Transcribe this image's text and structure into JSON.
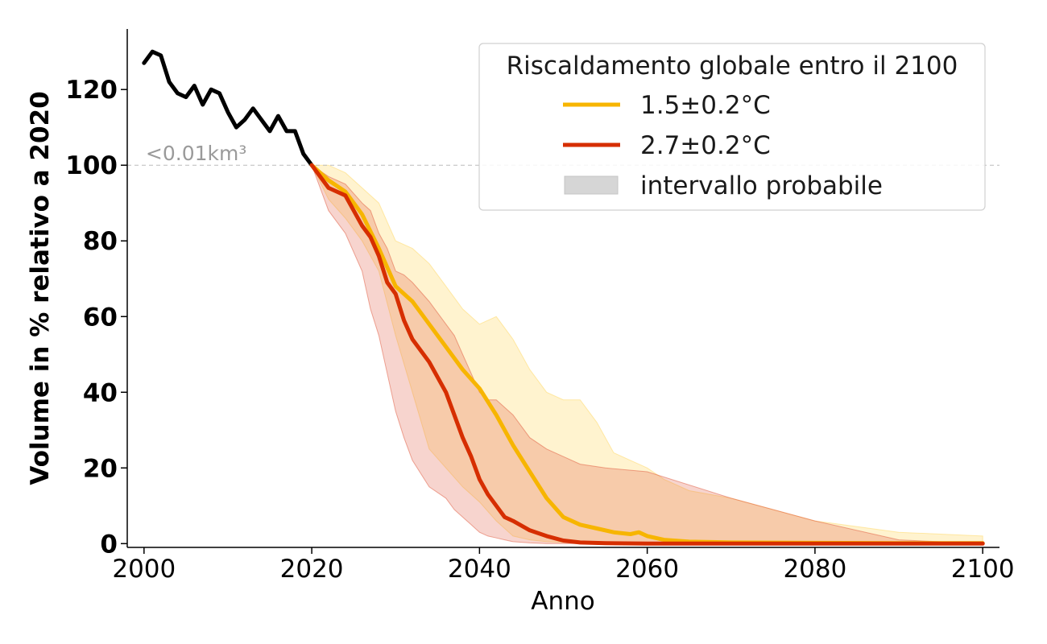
{
  "chart_data": {
    "type": "line",
    "xlabel": "Anno",
    "ylabel": "Volume in % relativo a 2020",
    "xlim": [
      1998,
      2102
    ],
    "ylim": [
      -1,
      136
    ],
    "xticks": [
      2000,
      2020,
      2040,
      2060,
      2080,
      2100
    ],
    "xtick_labels": [
      "2000",
      "2020",
      "2040",
      "2060",
      "2080",
      "2100"
    ],
    "yticks": [
      0,
      20,
      40,
      60,
      80,
      100,
      120
    ],
    "ytick_labels": [
      "0",
      "20",
      "40",
      "60",
      "80",
      "100",
      "120"
    ],
    "reference_line": {
      "y": 100,
      "style": "dashed",
      "color": "#bbbbbb"
    },
    "annotation": {
      "text": "<0.01km³",
      "x": 2000.2,
      "y": 100
    },
    "legend": {
      "title": "Riscaldamento globale entro il 2100",
      "position": "top-right",
      "entries": [
        "1.5±0.2°C",
        "2.7±0.2°C",
        "intervallo probabile"
      ]
    },
    "series": [
      {
        "key": "observed",
        "color": "#000000",
        "x": [
          2000,
          2001,
          2002,
          2003,
          2004,
          2005,
          2006,
          2007,
          2008,
          2009,
          2010,
          2011,
          2012,
          2013,
          2014,
          2015,
          2016,
          2017,
          2018,
          2019,
          2020
        ],
        "values": [
          127,
          130,
          129,
          122,
          119,
          118,
          121,
          116,
          120,
          119,
          114,
          110,
          112,
          115,
          112,
          109,
          113,
          109,
          109,
          103,
          100
        ]
      },
      {
        "key": "scenario_low",
        "name": "1.5±0.2°C",
        "color": "#f7b500",
        "x": [
          2020,
          2022,
          2024,
          2026,
          2028,
          2030,
          2032,
          2034,
          2036,
          2038,
          2040,
          2042,
          2044,
          2046,
          2048,
          2050,
          2052,
          2054,
          2056,
          2058,
          2059,
          2060,
          2062,
          2065,
          2070,
          2080,
          2090,
          2100
        ],
        "values": [
          100,
          96,
          93,
          87,
          78,
          68,
          64,
          58,
          52,
          46,
          41,
          34,
          26,
          19,
          12,
          7,
          5,
          4,
          3,
          2.5,
          3,
          2,
          1,
          0.5,
          0.3,
          0.2,
          0.1,
          0.1
        ],
        "range_upper": [
          100,
          100,
          98,
          94,
          90,
          80,
          78,
          74,
          68,
          62,
          58,
          60,
          54,
          46,
          40,
          38,
          38,
          32,
          24,
          22,
          21,
          20,
          17,
          14,
          12,
          6,
          3,
          2
        ],
        "range_lower": [
          100,
          91,
          86,
          80,
          72,
          55,
          40,
          25,
          20,
          15,
          11,
          6,
          2,
          1,
          0.5,
          0.3,
          0.2,
          0.1,
          0.1,
          0.1,
          0.1,
          0,
          0,
          0,
          0,
          0,
          0,
          0
        ]
      },
      {
        "key": "scenario_high",
        "name": "2.7±0.2°C",
        "color": "#d62e00",
        "x": [
          2020,
          2022,
          2024,
          2026,
          2027,
          2028,
          2029,
          2030,
          2031,
          2032,
          2034,
          2036,
          2037,
          2038,
          2039,
          2040,
          2041,
          2042,
          2043,
          2044,
          2046,
          2048,
          2050,
          2052,
          2055,
          2060,
          2070,
          2080,
          2090,
          2100
        ],
        "values": [
          100,
          94,
          92,
          84,
          81,
          76,
          69,
          66,
          59,
          54,
          48,
          40,
          34,
          28,
          23,
          17,
          13,
          10,
          7,
          6,
          3.5,
          2,
          0.8,
          0.3,
          0.1,
          0,
          0,
          0,
          0,
          0
        ],
        "range_upper": [
          100,
          97,
          95,
          90,
          88,
          82,
          78,
          72,
          71,
          69,
          64,
          58,
          55,
          50,
          45,
          40,
          38,
          38,
          36,
          34,
          28,
          25,
          23,
          21,
          20,
          19,
          12,
          6,
          1,
          0
        ],
        "range_lower": [
          100,
          88,
          82,
          72,
          62,
          55,
          45,
          35,
          28,
          22,
          15,
          12,
          9,
          7,
          5,
          3,
          2,
          1.5,
          1,
          0.5,
          0.2,
          0,
          0,
          0,
          0,
          0,
          0,
          0,
          0,
          0
        ]
      }
    ]
  }
}
